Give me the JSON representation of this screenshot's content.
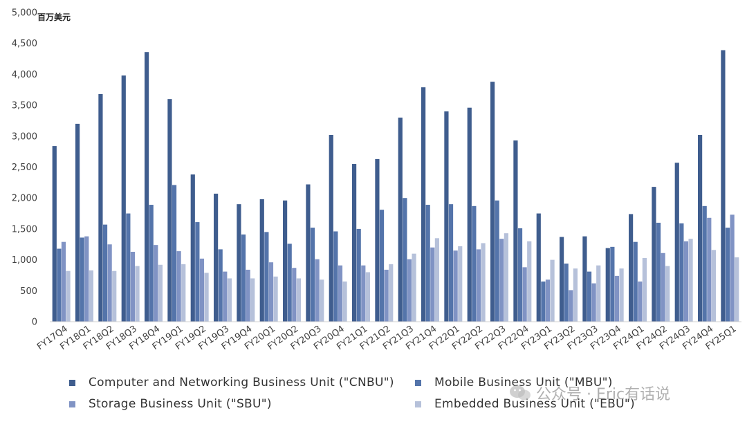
{
  "chart_data": {
    "type": "bar",
    "unit_label": "百万美元",
    "ylim": [
      0,
      5000
    ],
    "yticks": [
      0,
      500,
      1000,
      1500,
      2000,
      2500,
      3000,
      3500,
      4000,
      4500,
      5000
    ],
    "ytick_labels": [
      "0",
      "500",
      "1,000",
      "1,500",
      "2,000",
      "2,500",
      "3,000",
      "3,500",
      "4,000",
      "4,500",
      "5,000"
    ],
    "grid": false,
    "legend_position": "bottom",
    "categories": [
      "FY17Q4",
      "FY18Q1",
      "FY18Q2",
      "FY18Q3",
      "FY18Q4",
      "FY19Q1",
      "FY19Q2",
      "FY19Q3",
      "FY19Q4",
      "FY20Q1",
      "FY20Q2",
      "FY20Q3",
      "FY20Q4",
      "FY21Q1",
      "FY21Q2",
      "FY21Q3",
      "FY21Q4",
      "FY22Q1",
      "FY22Q2",
      "FY22Q3",
      "FY22Q4",
      "FY23Q1",
      "FY23Q2",
      "FY23Q3",
      "FY23Q4",
      "FY24Q1",
      "FY24Q2",
      "FY24Q3",
      "FY24Q4",
      "FY25Q1"
    ],
    "series": [
      {
        "name": "Computer and Networking Business Unit (\"CNBU\")",
        "color": "#3f5d8e",
        "values": [
          2840,
          3200,
          3680,
          3980,
          4360,
          3600,
          2380,
          2070,
          1900,
          1980,
          1960,
          2220,
          3020,
          2550,
          2630,
          3300,
          3790,
          3400,
          3460,
          3880,
          2930,
          1750,
          1370,
          1380,
          1190,
          1740,
          2180,
          2570,
          3020,
          4390
        ]
      },
      {
        "name": "Mobile Business Unit (\"MBU\")",
        "color": "#5474aa",
        "values": [
          1180,
          1360,
          1570,
          1750,
          1890,
          2210,
          1610,
          1170,
          1410,
          1450,
          1260,
          1520,
          1460,
          1500,
          1810,
          2000,
          1890,
          1900,
          1870,
          1960,
          1510,
          650,
          940,
          810,
          1210,
          1290,
          1600,
          1590,
          1870,
          1520
        ]
      },
      {
        "name": "Storage Business Unit (\"SBU\")",
        "color": "#8093c4",
        "values": [
          1290,
          1380,
          1250,
          1130,
          1240,
          1140,
          1020,
          810,
          840,
          960,
          870,
          1010,
          910,
          910,
          840,
          1010,
          1200,
          1150,
          1170,
          1340,
          880,
          680,
          510,
          620,
          740,
          650,
          1110,
          1300,
          1680,
          1730
        ]
      },
      {
        "name": "Embedded Business Unit (\"EBU\")",
        "color": "#b6c1da",
        "values": [
          820,
          830,
          820,
          900,
          920,
          930,
          790,
          700,
          700,
          730,
          700,
          680,
          650,
          800,
          930,
          1100,
          1350,
          1220,
          1270,
          1430,
          1300,
          1000,
          860,
          910,
          860,
          1030,
          900,
          1340,
          1160,
          1040
        ]
      }
    ]
  },
  "watermark": {
    "text": "公众号 · Eric有话说",
    "icon": "wechat-icon"
  }
}
